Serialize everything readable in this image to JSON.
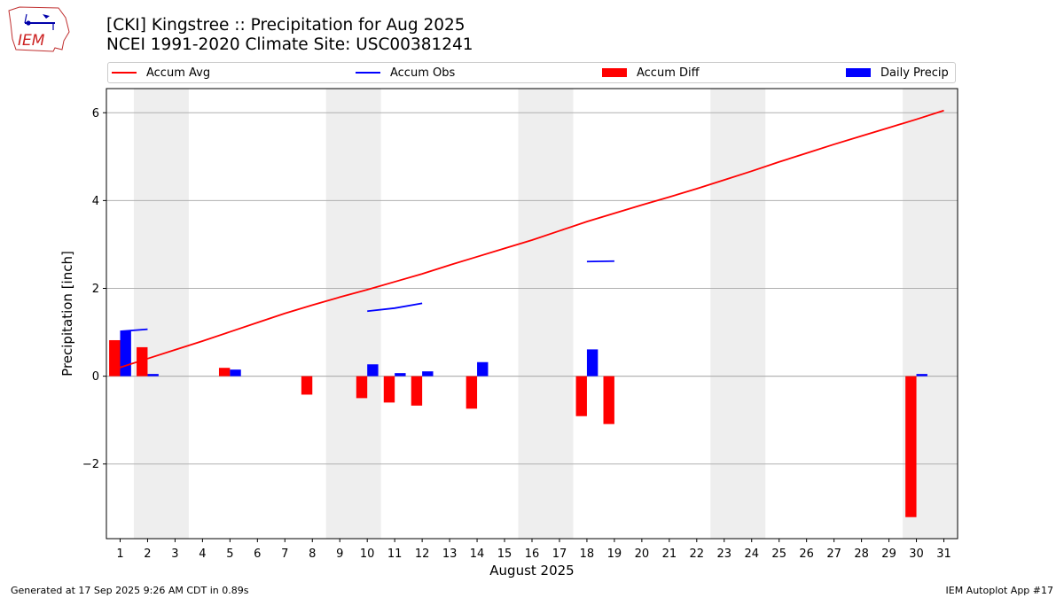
{
  "logo": {
    "text": "IEM"
  },
  "header": {
    "title_line1": "[CKI] Kingstree :: Precipitation for Aug 2025",
    "title_line2": "NCEI 1991-2020 Climate Site: USC00381241"
  },
  "legend": {
    "accum_avg": "Accum Avg",
    "accum_obs": "Accum Obs",
    "accum_diff": "Accum Diff",
    "daily_precip": "Daily Precip"
  },
  "footer": {
    "left": "Generated at 17 Sep 2025 9:26 AM CDT in 0.89s",
    "right": "IEM Autoplot App #17"
  },
  "colors": {
    "avg": "#ff0000",
    "obs": "#0000ff",
    "diff": "#ff0000",
    "daily": "#0000ff",
    "weekend_shade": "#eeeeee",
    "grid": "#b0b0b0"
  },
  "chart_data": {
    "type": "bar",
    "title": "[CKI] Kingstree :: Precipitation for Aug 2025",
    "subtitle": "NCEI 1991-2020 Climate Site: USC00381241",
    "xlabel": "August 2025",
    "ylabel": "Precipitation [inch]",
    "xlim": [
      0.5,
      31.5
    ],
    "ylim": [
      -3.7,
      6.55
    ],
    "yticks": [
      -2,
      0,
      2,
      4,
      6
    ],
    "ytick_labels": [
      "−2",
      "0",
      "2",
      "4",
      "6"
    ],
    "xticks": [
      1,
      2,
      3,
      4,
      5,
      6,
      7,
      8,
      9,
      10,
      11,
      12,
      13,
      14,
      15,
      16,
      17,
      18,
      19,
      20,
      21,
      22,
      23,
      24,
      25,
      26,
      27,
      28,
      29,
      30,
      31
    ],
    "grid": "y",
    "legend_position": "top",
    "shaded_days": [
      [
        2,
        3
      ],
      [
        9,
        10
      ],
      [
        16,
        17
      ],
      [
        23,
        24
      ],
      [
        30,
        31
      ]
    ],
    "series": [
      {
        "name": "Accum Avg",
        "kind": "line",
        "values": [
          0.2,
          0.4,
          0.6,
          0.8,
          1.01,
          1.22,
          1.43,
          1.62,
          1.8,
          1.97,
          2.15,
          2.33,
          2.53,
          2.72,
          2.91,
          3.1,
          3.31,
          3.52,
          3.71,
          3.9,
          4.08,
          4.27,
          4.47,
          4.67,
          4.88,
          5.08,
          5.28,
          5.47,
          5.66,
          5.85,
          6.05
        ]
      },
      {
        "name": "Accum Obs",
        "kind": "line",
        "values": [
          1.02,
          1.07,
          null,
          null,
          null,
          null,
          null,
          null,
          null,
          1.48,
          1.55,
          1.66,
          null,
          null,
          null,
          null,
          null,
          2.61,
          2.62,
          null,
          null,
          null,
          null,
          null,
          null,
          null,
          null,
          null,
          null,
          null,
          null
        ]
      },
      {
        "name": "Accum Diff",
        "kind": "bar",
        "values": [
          0.82,
          0.66,
          null,
          null,
          0.19,
          null,
          null,
          -0.42,
          null,
          -0.5,
          -0.6,
          -0.67,
          null,
          -0.74,
          null,
          null,
          null,
          -0.91,
          -1.09,
          null,
          null,
          null,
          null,
          null,
          null,
          null,
          null,
          null,
          null,
          -3.21,
          null
        ]
      },
      {
        "name": "Daily Precip",
        "kind": "bar",
        "values": [
          1.03,
          0.05,
          null,
          null,
          0.15,
          null,
          null,
          null,
          null,
          0.27,
          0.07,
          0.11,
          null,
          0.32,
          null,
          null,
          null,
          0.61,
          null,
          null,
          null,
          null,
          null,
          null,
          null,
          null,
          null,
          null,
          null,
          0.05,
          null
        ]
      }
    ]
  }
}
